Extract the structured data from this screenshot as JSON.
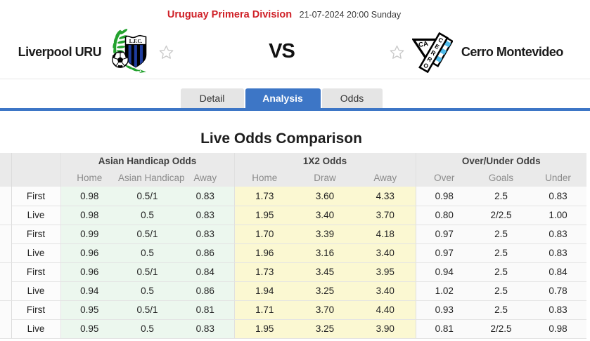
{
  "header": {
    "league": "Uruguay Primera Division",
    "datetime": "21-07-2024 20:00 Sunday",
    "home_team": "Liverpool URU",
    "away_team": "Cerro Montevideo",
    "vs_label": "VS"
  },
  "tabs": [
    {
      "label": "Detail",
      "active": false
    },
    {
      "label": "Analysis",
      "active": true
    },
    {
      "label": "Odds",
      "active": false
    }
  ],
  "section_title": "Live Odds Comparison",
  "odds_table": {
    "groups": [
      "Asian Handicap Odds",
      "1X2 Odds",
      "Over/Under Odds"
    ],
    "sub_headers": [
      "Home",
      "Asian Handicap",
      "Away",
      "Home",
      "Draw",
      "Away",
      "Over",
      "Goals",
      "Under"
    ],
    "rows": [
      {
        "label": "First",
        "values": [
          "0.98",
          "0.5/1",
          "0.83",
          "1.73",
          "3.60",
          "4.33",
          "0.98",
          "2.5",
          "0.83"
        ]
      },
      {
        "label": "Live",
        "values": [
          "0.98",
          "0.5",
          "0.83",
          "1.95",
          "3.40",
          "3.70",
          "0.80",
          "2/2.5",
          "1.00"
        ]
      },
      {
        "label": "First",
        "values": [
          "0.99",
          "0.5/1",
          "0.83",
          "1.70",
          "3.39",
          "4.18",
          "0.97",
          "2.5",
          "0.83"
        ]
      },
      {
        "label": "Live",
        "values": [
          "0.96",
          "0.5",
          "0.86",
          "1.96",
          "3.16",
          "3.40",
          "0.97",
          "2.5",
          "0.83"
        ]
      },
      {
        "label": "First",
        "values": [
          "0.96",
          "0.5/1",
          "0.84",
          "1.73",
          "3.45",
          "3.95",
          "0.94",
          "2.5",
          "0.84"
        ]
      },
      {
        "label": "Live",
        "values": [
          "0.94",
          "0.5",
          "0.86",
          "1.94",
          "3.25",
          "3.40",
          "1.02",
          "2.5",
          "0.78"
        ]
      },
      {
        "label": "First",
        "values": [
          "0.95",
          "0.5/1",
          "0.81",
          "1.71",
          "3.70",
          "4.40",
          "0.93",
          "2.5",
          "0.83"
        ]
      },
      {
        "label": "Live",
        "values": [
          "0.95",
          "0.5",
          "0.83",
          "1.95",
          "3.25",
          "3.90",
          "0.81",
          "2/2.5",
          "0.98"
        ]
      }
    ]
  },
  "colors": {
    "accent_blue": "#3d76c6",
    "league_red": "#cf2128",
    "ah_bg": "#ecf7ee",
    "x12_bg": "#fbf8d2",
    "ou_bg": "#fafafa",
    "header_bg": "#eaeaea"
  }
}
